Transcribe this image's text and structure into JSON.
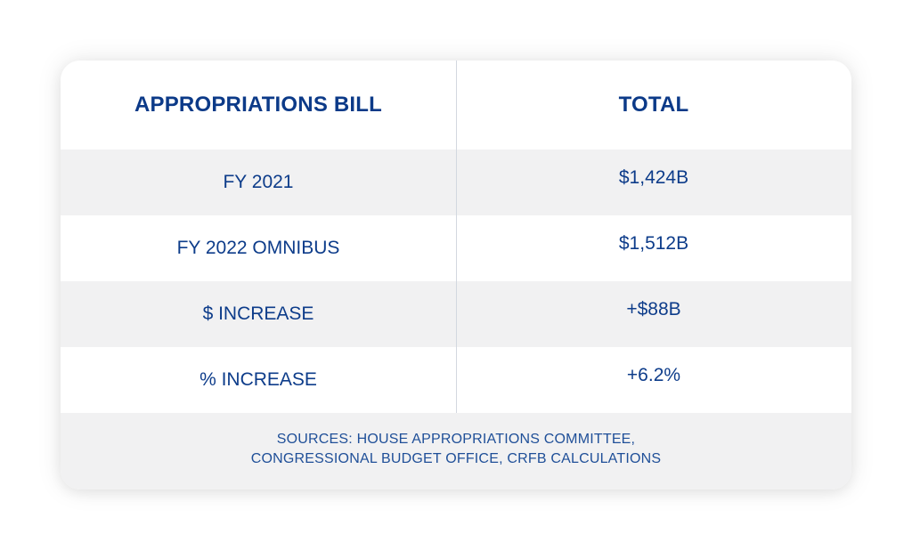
{
  "table": {
    "headers": {
      "bill": "APPROPRIATIONS BILL",
      "total": "TOTAL"
    },
    "rows": [
      {
        "bill": "FY 2021",
        "total": "$1,424B"
      },
      {
        "bill": "FY 2022 OMNIBUS",
        "total": "$1,512B"
      },
      {
        "bill": "$ INCREASE",
        "total": "+$88B"
      },
      {
        "bill": "% INCREASE",
        "total": "+6.2%"
      }
    ]
  },
  "footer": {
    "line1": "SOURCES: HOUSE APPROPRIATIONS COMMITTEE,",
    "line2": "CONGRESSIONAL BUDGET OFFICE, CRFB CALCULATIONS"
  },
  "colors": {
    "text_primary": "#0c3a88",
    "text_footer": "#1f4f98",
    "row_alt": "#f1f1f2",
    "background": "#ffffff"
  }
}
